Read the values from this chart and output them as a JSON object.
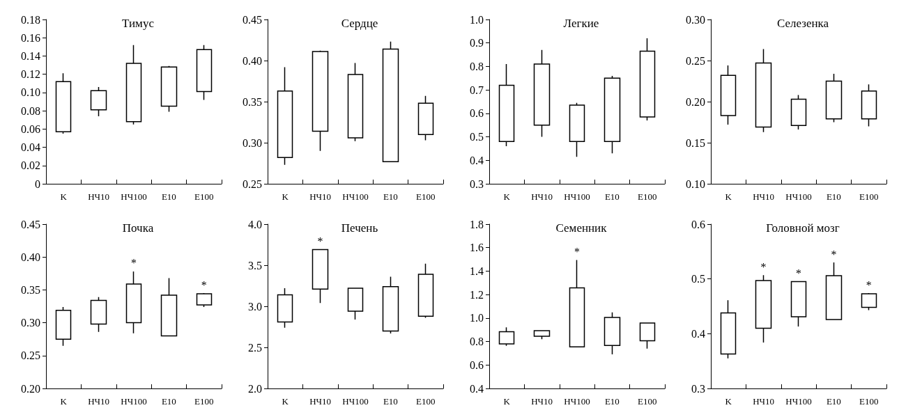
{
  "chart_data": [
    {
      "type": "candlestick",
      "title": "Тимус",
      "categories": [
        "K",
        "НЧ10",
        "НЧ100",
        "E10",
        "E100"
      ],
      "ylim": [
        0,
        0.18
      ],
      "yticks": [
        0,
        0.02,
        0.04,
        0.06,
        0.08,
        {
          "value": 0.1,
          "label": "0.10"
        },
        0.12,
        0.14,
        0.16,
        0.18
      ],
      "color": "#000000",
      "ohlc": [
        [
          0.057,
          0.121,
          0.055,
          0.112
        ],
        [
          0.081,
          0.106,
          0.074,
          0.102
        ],
        [
          0.068,
          0.152,
          0.065,
          0.132
        ],
        [
          0.085,
          0.129,
          0.079,
          0.128
        ],
        [
          0.101,
          0.152,
          0.092,
          0.147
        ]
      ]
    },
    {
      "type": "candlestick",
      "title": "Сердце",
      "categories": [
        "K",
        "НЧ10",
        "НЧ100",
        "E10",
        "E100"
      ],
      "ylim": [
        0.25,
        0.45
      ],
      "yticks": [
        0.25,
        {
          "value": 0.3,
          "label": "0.30"
        },
        0.35,
        {
          "value": 0.4,
          "label": "0.40"
        },
        0.45
      ],
      "color": "#000000",
      "ohlc": [
        [
          0.282,
          0.392,
          0.273,
          0.363
        ],
        [
          0.314,
          0.412,
          0.29,
          0.411
        ],
        [
          0.306,
          0.397,
          0.302,
          0.383
        ],
        [
          0.277,
          0.423,
          0.277,
          0.414
        ],
        [
          0.31,
          0.357,
          0.303,
          0.348
        ]
      ]
    },
    {
      "type": "candlestick",
      "title": "Легкие",
      "categories": [
        "K",
        "НЧ10",
        "НЧ100",
        "E10",
        "E100"
      ],
      "ylim": [
        0.3,
        1.0
      ],
      "yticks": [
        0.3,
        0.4,
        0.5,
        0.6,
        0.7,
        0.8,
        0.9,
        {
          "value": 1,
          "label": "1.0"
        }
      ],
      "color": "#000000",
      "ohlc": [
        [
          0.48,
          0.81,
          0.46,
          0.72
        ],
        [
          0.55,
          0.87,
          0.5,
          0.81
        ],
        [
          0.48,
          0.645,
          0.415,
          0.635
        ],
        [
          0.48,
          0.76,
          0.43,
          0.75
        ],
        [
          0.585,
          0.92,
          0.57,
          0.865
        ]
      ]
    },
    {
      "type": "candlestick",
      "title": "Селезенка",
      "categories": [
        "K",
        "НЧ10",
        "НЧ100",
        "E10",
        "E100"
      ],
      "ylim": [
        0.1,
        0.3
      ],
      "yticks": [
        {
          "value": 0.1,
          "label": "0.10"
        },
        0.15,
        {
          "value": 0.2,
          "label": "0.20"
        },
        0.25,
        {
          "value": 0.3,
          "label": "0.30"
        }
      ],
      "color": "#000000",
      "ohlc": [
        [
          0.183,
          0.244,
          0.172,
          0.232
        ],
        [
          0.169,
          0.264,
          0.163,
          0.247
        ],
        [
          0.171,
          0.208,
          0.166,
          0.203
        ],
        [
          0.179,
          0.234,
          0.175,
          0.225
        ],
        [
          0.179,
          0.221,
          0.17,
          0.213
        ]
      ]
    },
    {
      "type": "candlestick",
      "title": "Почка",
      "categories": [
        "K",
        "НЧ10",
        "НЧ100",
        "E10",
        "E100"
      ],
      "ylim": [
        0.2,
        0.45
      ],
      "yticks": [
        {
          "value": 0.2,
          "label": "0.20"
        },
        0.25,
        {
          "value": 0.3,
          "label": "0.30"
        },
        0.35,
        {
          "value": 0.4,
          "label": "0.40"
        },
        0.45
      ],
      "color": "#000000",
      "ohlc": [
        [
          0.275,
          0.324,
          0.265,
          0.319
        ],
        [
          0.298,
          0.339,
          0.286,
          0.334
        ],
        [
          0.3,
          0.378,
          0.284,
          0.359
        ],
        [
          0.28,
          0.368,
          0.28,
          0.342
        ],
        [
          0.327,
          0.345,
          0.324,
          0.344
        ]
      ],
      "annotations": [
        {
          "text": "*",
          "x": "НЧ100",
          "y": 0.378
        },
        {
          "text": "*",
          "x": "E100",
          "y": 0.345
        }
      ]
    },
    {
      "type": "candlestick",
      "title": "Печень",
      "categories": [
        "K",
        "НЧ10",
        "НЧ100",
        "E10",
        "E100"
      ],
      "ylim": [
        2.0,
        4.0
      ],
      "yticks": [
        {
          "value": 2,
          "label": "2.0"
        },
        2.5,
        {
          "value": 3,
          "label": "3.0"
        },
        3.5,
        {
          "value": 4,
          "label": "4.0"
        }
      ],
      "color": "#000000",
      "ohlc": [
        [
          2.81,
          3.22,
          2.74,
          3.14
        ],
        [
          3.21,
          3.69,
          3.04,
          3.69
        ],
        [
          2.94,
          3.22,
          2.84,
          3.22
        ],
        [
          2.7,
          3.36,
          2.67,
          3.24
        ],
        [
          2.88,
          3.52,
          2.86,
          3.39
        ]
      ],
      "annotations": [
        {
          "text": "*",
          "x": "НЧ10",
          "y": 3.69
        }
      ]
    },
    {
      "type": "candlestick",
      "title": "Семенник",
      "categories": [
        "K",
        "НЧ10",
        "НЧ100",
        "E10",
        "E100"
      ],
      "ylim": [
        0.4,
        1.8
      ],
      "yticks": [
        0.4,
        0.6,
        0.8,
        {
          "value": 1,
          "label": "1.0"
        },
        1.2,
        1.4,
        1.6,
        1.8
      ],
      "color": "#000000",
      "ohlc": [
        [
          0.78,
          0.92,
          0.764,
          0.883
        ],
        [
          0.845,
          0.895,
          0.82,
          0.893
        ],
        [
          0.755,
          1.495,
          0.755,
          1.257
        ],
        [
          0.767,
          1.048,
          0.69,
          1.005
        ],
        [
          0.807,
          0.957,
          0.74,
          0.957
        ]
      ],
      "annotations": [
        {
          "text": "*",
          "x": "НЧ100",
          "y": 1.495
        }
      ]
    },
    {
      "type": "candlestick",
      "title": "Головной мозг",
      "categories": [
        "K",
        "НЧ10",
        "НЧ100",
        "E10",
        "E100"
      ],
      "ylim": [
        0.3,
        0.6
      ],
      "yticks": [
        0.3,
        0.4,
        0.5,
        0.6
      ],
      "color": "#000000",
      "ohlc": [
        [
          0.363,
          0.461,
          0.355,
          0.438
        ],
        [
          0.41,
          0.507,
          0.384,
          0.497
        ],
        [
          0.431,
          0.495,
          0.413,
          0.495
        ],
        [
          0.426,
          0.53,
          0.425,
          0.506
        ],
        [
          0.448,
          0.474,
          0.443,
          0.473
        ]
      ],
      "annotations": [
        {
          "text": "*",
          "x": "НЧ10",
          "y": 0.507
        },
        {
          "text": "*",
          "x": "НЧ100",
          "y": 0.495
        },
        {
          "text": "*",
          "x": "E10",
          "y": 0.53
        },
        {
          "text": "*",
          "x": "E100",
          "y": 0.474
        }
      ]
    }
  ]
}
